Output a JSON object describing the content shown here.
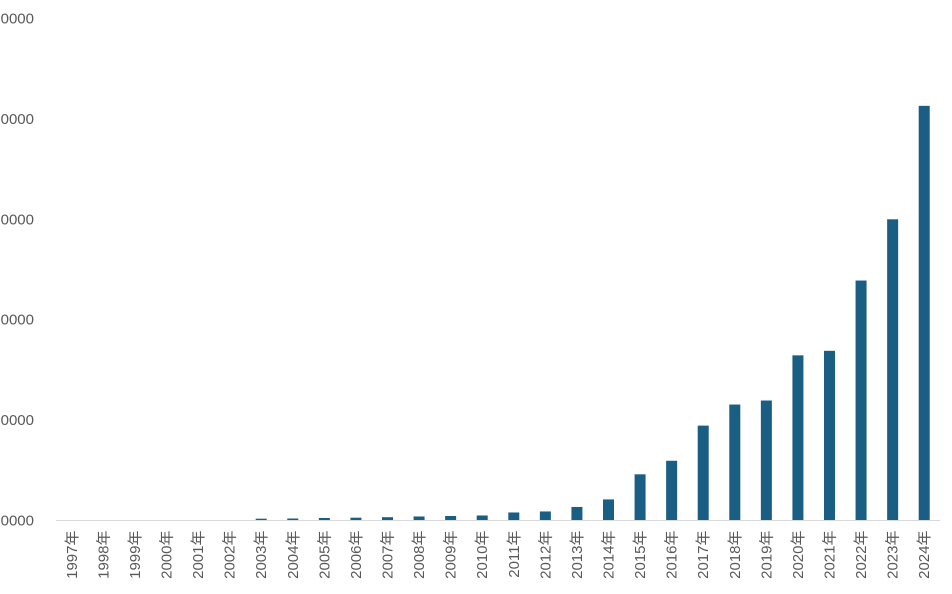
{
  "chart_data": {
    "type": "bar",
    "title": "",
    "xlabel": "",
    "ylabel": "",
    "categories": [
      "1997年",
      "1998年",
      "1999年",
      "2000年",
      "2001年",
      "2002年",
      "2003年",
      "2004年",
      "2005年",
      "2006年",
      "2007年",
      "2008年",
      "2009年",
      "2010年",
      "2011年",
      "2012年",
      "2013年",
      "2014年",
      "2015年",
      "2016年",
      "2017年",
      "2018年",
      "2019年",
      "2020年",
      "2021年",
      "2022年",
      "2023年",
      "2024年"
    ],
    "values": [
      0,
      0,
      0,
      0,
      0,
      0,
      0.018,
      0.02,
      0.025,
      0.028,
      0.033,
      0.04,
      0.045,
      0.05,
      0.08,
      0.09,
      0.135,
      0.21,
      0.46,
      0.595,
      0.945,
      1.155,
      1.195,
      1.645,
      1.69,
      2.39,
      3.0,
      4.13
    ],
    "yticks_visible": [
      "0000",
      "0000",
      "0000",
      "0000",
      "0000",
      "0000"
    ],
    "ylim": [
      0,
      5
    ],
    "bar_color": "#1a5e83",
    "axis_color": "#d9d9d9",
    "grid": false,
    "legend": "none"
  }
}
